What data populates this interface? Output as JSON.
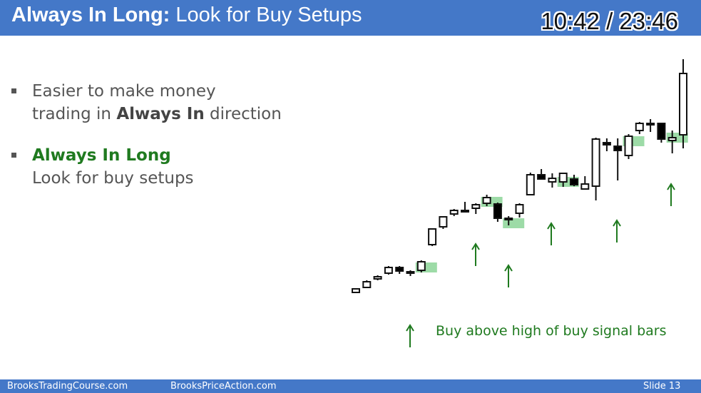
{
  "header": {
    "title_bold": "Always In Long:",
    "title_rest": " Look for Buy Setups",
    "timer": "10:42 / 23:46"
  },
  "bullets": [
    {
      "line1": "Easier to make money",
      "line2_pre": "trading in ",
      "line2_bold": "Always In",
      "line2_post": " direction"
    },
    {
      "line1": "Always In Long",
      "line2": "Look for buy setups"
    }
  ],
  "annotation": "Buy above high of buy signal bars",
  "footer": {
    "left": "BrooksTradingCourse.com",
    "center": "BrooksPriceAction.com",
    "slide": "Slide  13"
  },
  "colors": {
    "header": "#4478c8",
    "green_text": "#1f7a1f",
    "highlight": "#7ccf8a"
  },
  "chart_data": {
    "type": "candlestick",
    "note": "Price bars: x index, open, high, low, close in relative price units (up = higher).",
    "bars": [
      {
        "o": 73,
        "h": 78,
        "l": 72,
        "c": 78
      },
      {
        "o": 80,
        "h": 90,
        "l": 80,
        "c": 88
      },
      {
        "o": 92,
        "h": 97,
        "l": 90,
        "c": 95
      },
      {
        "o": 100,
        "h": 110,
        "l": 98,
        "c": 108
      },
      {
        "o": 108,
        "h": 110,
        "l": 99,
        "c": 103
      },
      {
        "o": 100,
        "h": 104,
        "l": 96,
        "c": 102
      },
      {
        "o": 104,
        "h": 118,
        "l": 101,
        "c": 116
      },
      {
        "o": 140,
        "h": 162,
        "l": 138,
        "c": 162
      },
      {
        "o": 165,
        "h": 180,
        "l": 162,
        "c": 179
      },
      {
        "o": 183,
        "h": 190,
        "l": 180,
        "c": 188
      },
      {
        "o": 187,
        "h": 200,
        "l": 186,
        "c": 188
      },
      {
        "o": 191,
        "h": 198,
        "l": 183,
        "c": 196
      },
      {
        "o": 198,
        "h": 210,
        "l": 194,
        "c": 206
      },
      {
        "o": 197,
        "h": 199,
        "l": 172,
        "c": 177
      },
      {
        "o": 175,
        "h": 180,
        "l": 167,
        "c": 177
      },
      {
        "o": 184,
        "h": 198,
        "l": 178,
        "c": 196
      },
      {
        "o": 210,
        "h": 241,
        "l": 210,
        "c": 238
      },
      {
        "o": 238,
        "h": 246,
        "l": 232,
        "c": 232
      },
      {
        "o": 228,
        "h": 240,
        "l": 220,
        "c": 233
      },
      {
        "o": 228,
        "h": 238,
        "l": 221,
        "c": 240
      },
      {
        "o": 232,
        "h": 238,
        "l": 222,
        "c": 224
      },
      {
        "o": 218,
        "h": 236,
        "l": 218,
        "c": 225
      },
      {
        "o": 222,
        "h": 290,
        "l": 202,
        "c": 288
      },
      {
        "o": 283,
        "h": 289,
        "l": 271,
        "c": 280
      },
      {
        "o": 278,
        "h": 289,
        "l": 230,
        "c": 272
      },
      {
        "o": 265,
        "h": 295,
        "l": 260,
        "c": 292
      },
      {
        "o": 300,
        "h": 312,
        "l": 295,
        "c": 310
      },
      {
        "o": 310,
        "h": 316,
        "l": 298,
        "c": 310
      },
      {
        "o": 310,
        "h": 307,
        "l": 283,
        "c": 288
      },
      {
        "o": 286,
        "h": 300,
        "l": 268,
        "c": 290
      },
      {
        "o": 294,
        "h": 400,
        "l": 275,
        "c": 380
      }
    ]
  }
}
